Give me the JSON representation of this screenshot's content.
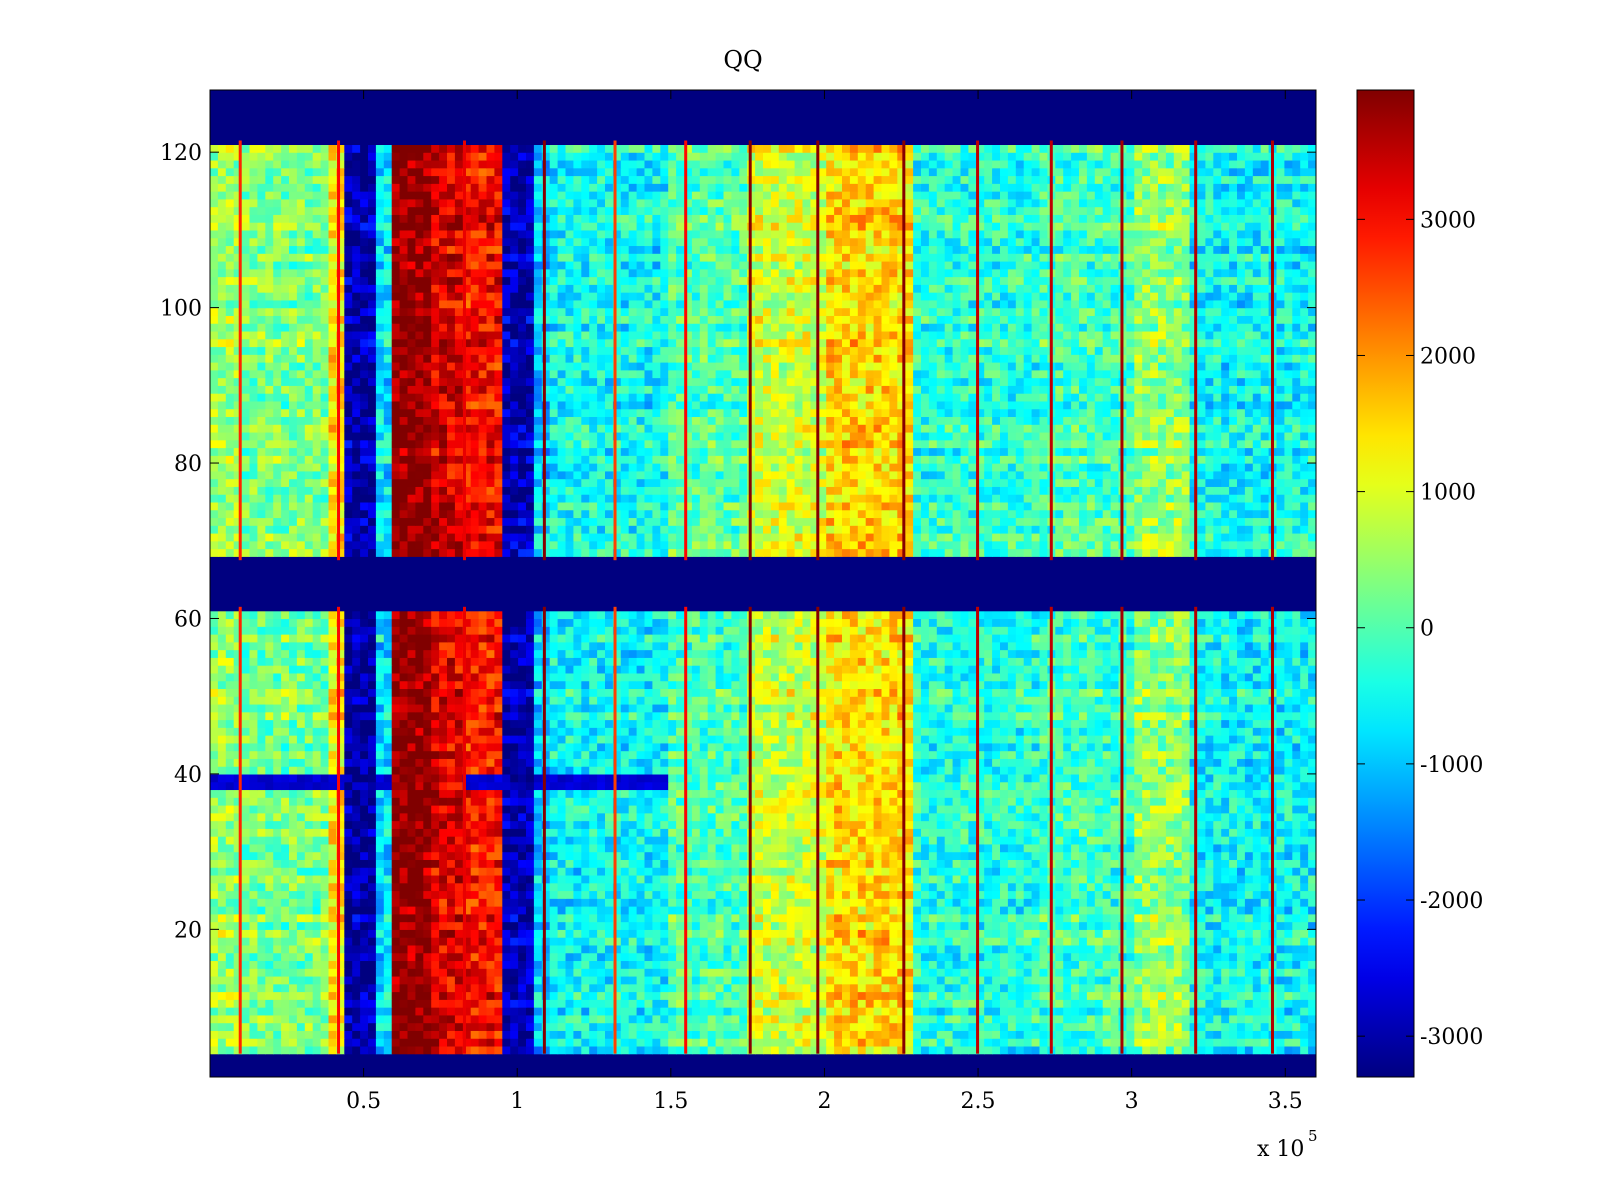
{
  "chart_data": {
    "type": "heatmap",
    "title": "QQ",
    "xlabel": "",
    "ylabel": "",
    "x_multiplier_label": "x 10",
    "x_multiplier_exponent": "5",
    "xlim": [
      0,
      360000
    ],
    "ylim": [
      1,
      128
    ],
    "x_ticks": [
      {
        "value": 50000,
        "label": "0.5"
      },
      {
        "value": 100000,
        "label": "1"
      },
      {
        "value": 150000,
        "label": "1.5"
      },
      {
        "value": 200000,
        "label": "2"
      },
      {
        "value": 250000,
        "label": "2.5"
      },
      {
        "value": 300000,
        "label": "3"
      },
      {
        "value": 350000,
        "label": "3.5"
      }
    ],
    "y_ticks": [
      {
        "value": 20,
        "label": "20"
      },
      {
        "value": 40,
        "label": "40"
      },
      {
        "value": 60,
        "label": "60"
      },
      {
        "value": 80,
        "label": "80"
      },
      {
        "value": 100,
        "label": "100"
      },
      {
        "value": 120,
        "label": "120"
      }
    ],
    "colorbar": {
      "colormap": "jet",
      "clim": [
        -3300,
        3950
      ],
      "ticks": [
        {
          "value": 3000,
          "label": "3000"
        },
        {
          "value": 2000,
          "label": "2000"
        },
        {
          "value": 1000,
          "label": "1000"
        },
        {
          "value": 0,
          "label": "0"
        },
        {
          "value": -1000,
          "label": "-1000"
        },
        {
          "value": -2000,
          "label": "-2000"
        },
        {
          "value": -3000,
          "label": "-3000"
        }
      ]
    },
    "masked_row_bands": [
      {
        "y_from": 1,
        "y_to": 4
      },
      {
        "y_from": 61.5,
        "y_to": 67.5
      },
      {
        "y_from": 121.5,
        "y_to": 128
      }
    ],
    "column_profile": [
      {
        "x_from": 0,
        "x_to": 10000,
        "value": 600
      },
      {
        "x_from": 10000,
        "x_to": 38000,
        "value": 300
      },
      {
        "x_from": 38000,
        "x_to": 43000,
        "value": 1400
      },
      {
        "x_from": 43000,
        "x_to": 53000,
        "value": -3000
      },
      {
        "x_from": 53000,
        "x_to": 58000,
        "value": -700
      },
      {
        "x_from": 58000,
        "x_to": 72000,
        "value": 3900
      },
      {
        "x_from": 72000,
        "x_to": 83000,
        "value": 3300
      },
      {
        "x_from": 83000,
        "x_to": 95000,
        "value": 3000
      },
      {
        "x_from": 95000,
        "x_to": 105000,
        "value": -2900
      },
      {
        "x_from": 105000,
        "x_to": 110000,
        "value": -900
      },
      {
        "x_from": 110000,
        "x_to": 150000,
        "value": -500
      },
      {
        "x_from": 150000,
        "x_to": 175000,
        "value": 0
      },
      {
        "x_from": 175000,
        "x_to": 200000,
        "value": 900
      },
      {
        "x_from": 200000,
        "x_to": 228000,
        "value": 1500
      },
      {
        "x_from": 228000,
        "x_to": 270000,
        "value": -300
      },
      {
        "x_from": 270000,
        "x_to": 300000,
        "value": -100
      },
      {
        "x_from": 300000,
        "x_to": 320000,
        "value": 500
      },
      {
        "x_from": 320000,
        "x_to": 360000,
        "value": -500
      }
    ],
    "vertical_lines": [
      {
        "x": 10000,
        "value": 2800
      },
      {
        "x": 42000,
        "value": 3000
      },
      {
        "x": 83000,
        "value": 3200
      },
      {
        "x": 109000,
        "value": 3900
      },
      {
        "x": 132000,
        "value": 2600
      },
      {
        "x": 155000,
        "value": 3000
      },
      {
        "x": 176000,
        "value": 3900
      },
      {
        "x": 198000,
        "value": 3900
      },
      {
        "x": 226000,
        "value": 3900
      },
      {
        "x": 250000,
        "value": 3500
      },
      {
        "x": 274000,
        "value": 3500
      },
      {
        "x": 297000,
        "value": 3700
      },
      {
        "x": 321000,
        "value": 3600
      },
      {
        "x": 346000,
        "value": 3600
      }
    ],
    "row_anomaly": {
      "y": 39,
      "value": -2700
    }
  }
}
